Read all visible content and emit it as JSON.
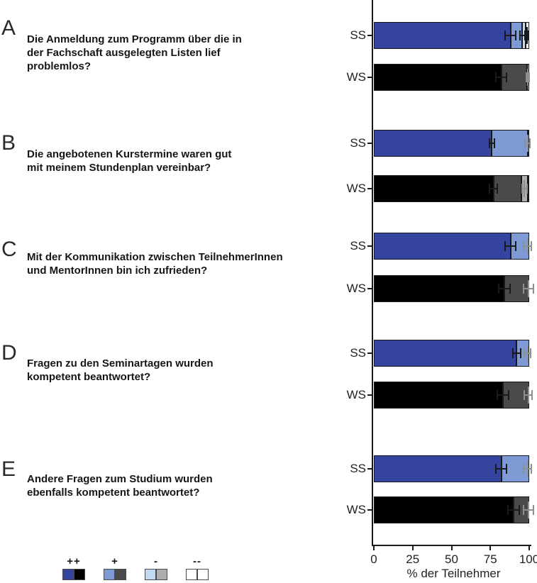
{
  "chart_data": {
    "type": "bar",
    "orientation": "horizontal-stacked",
    "xlabel": "% der Teilnehmer",
    "xlim": [
      0,
      100
    ],
    "x_ticks": [
      0,
      25,
      50,
      75,
      100
    ],
    "group_labels": [
      "SS",
      "WS"
    ],
    "categories": [
      "++",
      "+",
      "-",
      "--"
    ],
    "palettes": {
      "SS": [
        "#35449E",
        "#7D9AD4",
        "#C3D8F3",
        "#FFFFFF"
      ],
      "WS": [
        "#000000",
        "#4A4A4A",
        "#ADADAD",
        "#FFFFFF"
      ]
    },
    "panels": [
      {
        "letter": "A",
        "question": "Die Anmeldung zum Programm über die in\nder Fachschaft ausgelegten Listen lief\nproblemlos?",
        "bars": [
          {
            "label": "SS",
            "values": [
              88,
              7.5,
              2,
              2.5
            ],
            "errors": [
              {
                "x": 88,
                "half": 4,
                "tone": "dark"
              },
              {
                "x": 95.5,
                "half": 2,
                "tone": "dark"
              },
              {
                "x": 98.5,
                "half": 1.5,
                "tone": "dark"
              }
            ]
          },
          {
            "label": "WS",
            "values": [
              82,
              16.5,
              1.5,
              0
            ],
            "errors": [
              {
                "x": 82,
                "half": 4,
                "tone": "dark"
              },
              {
                "x": 99,
                "half": 1.5,
                "tone": "light"
              }
            ]
          }
        ]
      },
      {
        "letter": "B",
        "question": "Die angebotenen Kurstermine waren gut\nmit meinem Stundenplan vereinbar?",
        "bars": [
          {
            "label": "SS",
            "values": [
              76,
              23,
              0,
              1
            ],
            "errors": [
              {
                "x": 76,
                "half": 2,
                "tone": "dark"
              },
              {
                "x": 99,
                "half": 2,
                "tone": "light"
              }
            ]
          },
          {
            "label": "WS",
            "values": [
              77,
              18,
              4,
              1
            ],
            "errors": [
              {
                "x": 77,
                "half": 3,
                "tone": "dark"
              },
              {
                "x": 97,
                "half": 2,
                "tone": "light"
              }
            ]
          }
        ]
      },
      {
        "letter": "C",
        "question": "Mit der Kommunikation zwischen TeilnehmerInnen\nund MentorInnen bin ich zufrieden?",
        "bars": [
          {
            "label": "SS",
            "values": [
              88,
              12,
              0,
              0
            ],
            "errors": [
              {
                "x": 88,
                "half": 4,
                "tone": "dark"
              },
              {
                "x": 99,
                "half": 3,
                "tone": "light"
              }
            ]
          },
          {
            "label": "WS",
            "values": [
              84,
              16,
              0,
              0
            ],
            "errors": [
              {
                "x": 84,
                "half": 4,
                "tone": "dark"
              },
              {
                "x": 99.5,
                "half": 3.5,
                "tone": "light"
              }
            ]
          }
        ]
      },
      {
        "letter": "D",
        "question": "Fragen zu den Seminartagen wurden\nkompetent beantwortet?",
        "bars": [
          {
            "label": "SS",
            "values": [
              92,
              8,
              0,
              0
            ],
            "errors": [
              {
                "x": 92,
                "half": 3,
                "tone": "dark"
              },
              {
                "x": 99,
                "half": 2.5,
                "tone": "light"
              }
            ]
          },
          {
            "label": "WS",
            "values": [
              83,
              17,
              0,
              0
            ],
            "errors": [
              {
                "x": 83,
                "half": 4,
                "tone": "dark"
              },
              {
                "x": 99.5,
                "half": 3,
                "tone": "light"
              }
            ]
          }
        ]
      },
      {
        "letter": "E",
        "question": "Andere Fragen zum Studium wurden\nebenfalls kompetent beantwortet?",
        "bars": [
          {
            "label": "SS",
            "values": [
              82,
              18,
              0,
              0
            ],
            "errors": [
              {
                "x": 82,
                "half": 4,
                "tone": "dark"
              },
              {
                "x": 99,
                "half": 3,
                "tone": "light"
              }
            ]
          },
          {
            "label": "WS",
            "values": [
              90,
              10,
              0,
              0
            ],
            "errors": [
              {
                "x": 90,
                "half": 4,
                "tone": "dark"
              },
              {
                "x": 99.5,
                "half": 3.5,
                "tone": "light"
              }
            ]
          }
        ]
      }
    ]
  },
  "legend": {
    "items": [
      {
        "label": "++",
        "ss_color": "#35449E",
        "ws_color": "#000000"
      },
      {
        "label": "+",
        "ss_color": "#7D9AD4",
        "ws_color": "#4A4A4A"
      },
      {
        "label": "-",
        "ss_color": "#C3D8F3",
        "ws_color": "#ADADAD"
      },
      {
        "label": "--",
        "ss_color": "#FFFFFF",
        "ws_color": "#FFFFFF"
      }
    ]
  }
}
